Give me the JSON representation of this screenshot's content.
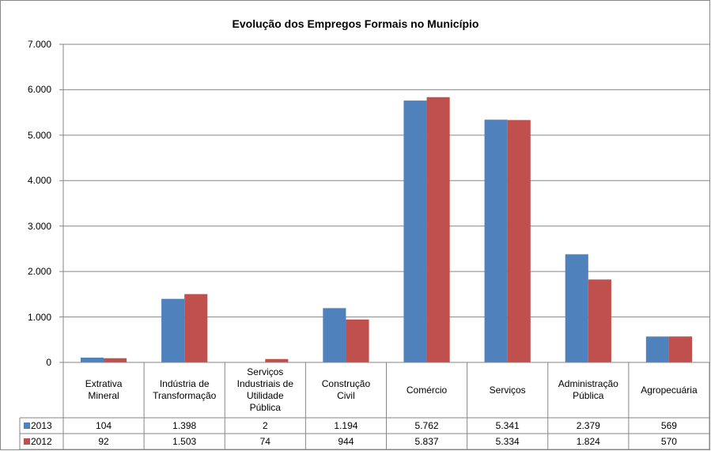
{
  "chart_data": {
    "type": "bar",
    "title": "Evolução dos Empregos Formais no Município",
    "categories": [
      "Extrativa\nMineral",
      "Indústria de\nTransformação",
      "Serviços\nIndustriais de\nUtilidade\nPública",
      "Construção\nCivil",
      "Comércio",
      "Serviços",
      "Administração\nPública",
      "Agropecuária"
    ],
    "series": [
      {
        "name": "2013",
        "color": "#4f81bd",
        "values": [
          104,
          1398,
          2,
          1194,
          5762,
          5341,
          2379,
          569
        ],
        "value_labels": [
          "104",
          "1.398",
          "2",
          "1.194",
          "5.762",
          "5.341",
          "2.379",
          "569"
        ]
      },
      {
        "name": "2012",
        "color": "#c0504d",
        "values": [
          92,
          1503,
          74,
          944,
          5837,
          5334,
          1824,
          570
        ],
        "value_labels": [
          "92",
          "1.503",
          "74",
          "944",
          "5.837",
          "5.334",
          "1.824",
          "570"
        ]
      }
    ],
    "ylim": [
      0,
      7000
    ],
    "yticks": [
      0,
      {
        "value": 1000,
        "label": "1.000"
      },
      {
        "value": 2000,
        "label": "2.000"
      },
      {
        "value": 3000,
        "label": "3.000"
      },
      {
        "value": 4000,
        "label": "4.000"
      },
      {
        "value": 5000,
        "label": "5.000"
      },
      {
        "value": 6000,
        "label": "6.000"
      },
      {
        "value": 7000,
        "label": "7.000"
      }
    ],
    "grid": true
  }
}
